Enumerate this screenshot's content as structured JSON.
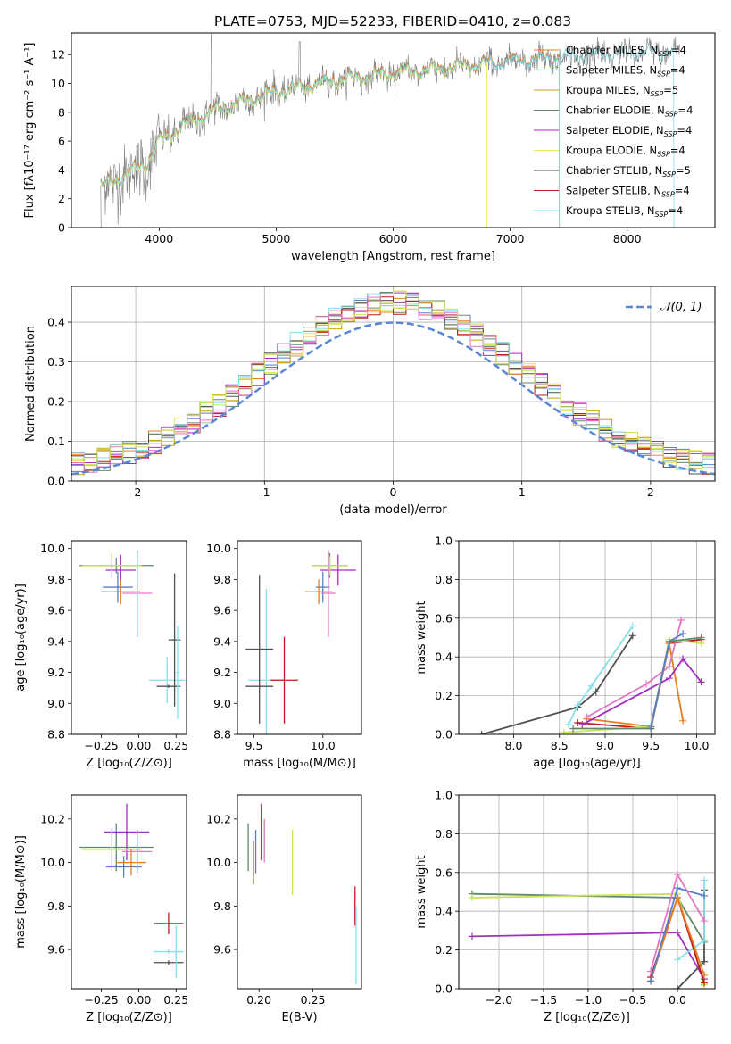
{
  "figure": {
    "title": "PLATE=0753, MJD=52233, FIBERID=0410, z=0.083"
  },
  "colors": {
    "chab_miles": "#e67e22",
    "salp_miles": "#5a7ec6",
    "krou_miles": "#c8a200",
    "chab_elodie": "#5f8a6c",
    "salp_elodie": "#a12fbf",
    "krou_elodie": "#e9e65a",
    "chab_stelib": "#505050",
    "salp_stelib": "#c01c1c",
    "krou_stelib": "#87e0e8",
    "pink": "#e377c2",
    "lime": "#c9e35a",
    "gray_spec": "#7f7f7f",
    "gauss": "#5a86d6"
  },
  "chart_data": [
    {
      "id": "spectrum",
      "type": "line",
      "xlabel": "wavelength [Angstrom, rest frame]",
      "ylabel": "Flux [fλ10⁻¹⁷ erg cm⁻² s⁻¹ A⁻¹]",
      "xlim": [
        3250,
        8750
      ],
      "ylim": [
        0,
        13.5
      ],
      "xticks": [
        4000,
        5000,
        6000,
        7000,
        8000
      ],
      "yticks": [
        0,
        2,
        4,
        6,
        8,
        10,
        12
      ],
      "legend_position": "top-right",
      "legend": [
        {
          "label": "Chabrier MILES, N",
          "sub": "SSP",
          "n": "=4",
          "color_key": "chab_miles"
        },
        {
          "label": "Salpeter MILES, N",
          "sub": "SSP",
          "n": "=4",
          "color_key": "salp_miles"
        },
        {
          "label": "Kroupa MILES, N",
          "sub": "SSP",
          "n": "=5",
          "color_key": "krou_miles"
        },
        {
          "label": "Chabrier ELODIE, N",
          "sub": "SSP",
          "n": "=4",
          "color_key": "chab_elodie"
        },
        {
          "label": "Salpeter ELODIE, N",
          "sub": "SSP",
          "n": "=4",
          "color_key": "salp_elodie"
        },
        {
          "label": "Kroupa ELODIE, N",
          "sub": "SSP",
          "n": "=4",
          "color_key": "krou_elodie"
        },
        {
          "label": "Chabrier STELIB, N",
          "sub": "SSP",
          "n": "=5",
          "color_key": "chab_stelib"
        },
        {
          "label": "Salpeter STELIB, N",
          "sub": "SSP",
          "n": "=4",
          "color_key": "salp_stelib"
        },
        {
          "label": "Kroupa STELIB, N",
          "sub": "SSP",
          "n": "=4",
          "color_key": "krou_stelib"
        }
      ],
      "continuum": {
        "x": [
          3500,
          3700,
          3900,
          4000,
          4200,
          4500,
          5000,
          5500,
          6000,
          6500,
          7000,
          7400,
          8000,
          8400
        ],
        "y": [
          2.8,
          3.6,
          4.5,
          6.0,
          7.0,
          8.2,
          9.4,
          10.2,
          10.7,
          11.1,
          11.5,
          11.8,
          12.1,
          12.2
        ]
      },
      "models_end": {
        "miles": 7420,
        "elodie": 6800,
        "stelib": 8400
      }
    },
    {
      "id": "residual_hist",
      "type": "bar",
      "xlabel": "(data-model)/error",
      "ylabel": "Normed distribution",
      "xlim": [
        -2.5,
        2.5
      ],
      "ylim": [
        0,
        0.49
      ],
      "xticks": [
        -2,
        -1,
        0,
        1,
        2
      ],
      "yticks": [
        0.0,
        0.1,
        0.2,
        0.3,
        0.4
      ],
      "grid": true,
      "legend_position": "top-right",
      "legend": [
        {
          "label": "𝒩(0, 1)",
          "color_key": "gauss",
          "style": "dashed"
        }
      ],
      "bin_width": 0.1,
      "bin_start": -2.5,
      "gaussian": {
        "mean": 0,
        "sigma": 1
      }
    },
    {
      "id": "z_age",
      "type": "scatter",
      "xlabel": "Z [log₁₀(Z/Z⊙)]",
      "ylabel": "age  [log₁₀(age/yr)]",
      "xlim": [
        -0.45,
        0.32
      ],
      "ylim": [
        8.8,
        10.05
      ],
      "xticks": [
        -0.25,
        0.0,
        0.25
      ],
      "xticklabels": [
        "−0.25",
        "0.00",
        "0.25"
      ],
      "yticks": [
        8.8,
        9.0,
        9.2,
        9.4,
        9.6,
        9.8,
        10.0
      ],
      "points": [
        {
          "x": -0.15,
          "xerr": 0.25,
          "y": 9.89,
          "yerr": 0.05,
          "c": "chab_elodie"
        },
        {
          "x": -0.12,
          "xerr": 0.1,
          "y": 9.86,
          "yerr": 0.1,
          "c": "salp_elodie"
        },
        {
          "x": -0.18,
          "xerr": 0.2,
          "y": 9.89,
          "yerr": 0.08,
          "c": "lime"
        },
        {
          "x": -0.14,
          "xerr": 0.1,
          "y": 9.75,
          "yerr": 0.1,
          "c": "salp_miles"
        },
        {
          "x": -0.12,
          "xerr": 0.13,
          "y": 9.72,
          "yerr": 0.08,
          "c": "chab_miles"
        },
        {
          "x": -0.01,
          "xerr": 0.1,
          "y": 9.71,
          "yerr": 0.28,
          "c": "pink"
        },
        {
          "x": 0.19,
          "xerr": 0.12,
          "y": 9.15,
          "yerr": 0.15,
          "c": "krou_stelib"
        },
        {
          "x": 0.24,
          "xerr": 0.04,
          "y": 9.41,
          "yerr": 0.43,
          "c": "chab_stelib"
        },
        {
          "x": 0.2,
          "xerr": 0.08,
          "y": 9.11,
          "yerr": 0.01,
          "c": "chab_stelib"
        },
        {
          "x": 0.26,
          "xerr": 0.01,
          "y": 9.2,
          "yerr": 0.3,
          "c": "krou_stelib"
        }
      ]
    },
    {
      "id": "mass_age",
      "type": "scatter",
      "xlabel": "mass [log₁₀(M/M⊙)]",
      "ylabel": "",
      "xlim": [
        9.38,
        10.28
      ],
      "ylim": [
        8.8,
        10.05
      ],
      "xticks": [
        9.5,
        10.0
      ],
      "yticks": [
        8.8,
        9.0,
        9.2,
        9.4,
        9.6,
        9.8,
        10.0
      ],
      "points": [
        {
          "x": 10.05,
          "xerr": 0.13,
          "y": 9.89,
          "yerr": 0.08,
          "c": "chab_elodie"
        },
        {
          "x": 10.11,
          "xerr": 0.13,
          "y": 9.86,
          "yerr": 0.1,
          "c": "salp_elodie"
        },
        {
          "x": 10.05,
          "xerr": 0.13,
          "y": 9.89,
          "yerr": 0.06,
          "c": "lime"
        },
        {
          "x": 10.0,
          "xerr": 0.05,
          "y": 9.75,
          "yerr": 0.1,
          "c": "salp_miles"
        },
        {
          "x": 9.97,
          "xerr": 0.1,
          "y": 9.72,
          "yerr": 0.08,
          "c": "chab_miles"
        },
        {
          "x": 10.04,
          "xerr": 0.05,
          "y": 9.71,
          "yerr": 0.28,
          "c": "pink"
        },
        {
          "x": 9.59,
          "xerr": 0.13,
          "y": 9.15,
          "yerr": 0.59,
          "c": "krou_stelib"
        },
        {
          "x": 9.54,
          "xerr": 0.1,
          "y": 9.35,
          "yerr": 0.48,
          "c": "chab_stelib"
        },
        {
          "x": 9.72,
          "xerr": 0.1,
          "y": 9.15,
          "yerr": 0.28,
          "c": "salp_stelib"
        },
        {
          "x": 9.54,
          "xerr": 0.1,
          "y": 9.11,
          "yerr": 0.01,
          "c": "chab_stelib"
        }
      ]
    },
    {
      "id": "age_weight",
      "type": "line",
      "xlabel": "age  [log₁₀(age/yr)]",
      "ylabel": "mass weight",
      "xlim": [
        7.4,
        10.2
      ],
      "ylim": [
        0,
        1.0
      ],
      "xticks": [
        8.0,
        8.5,
        9.0,
        9.5,
        10.0
      ],
      "yticks": [
        0.0,
        0.2,
        0.4,
        0.6,
        0.8,
        1.0
      ],
      "grid": true,
      "series": [
        {
          "c": "chab_stelib",
          "x": [
            7.65,
            8.7,
            8.9,
            9.3
          ],
          "y": [
            0.0,
            0.14,
            0.22,
            0.51
          ]
        },
        {
          "c": "krou_stelib",
          "x": [
            8.6,
            8.7,
            8.85,
            9.3
          ],
          "y": [
            0.05,
            0.15,
            0.25,
            0.56
          ]
        },
        {
          "c": "salp_stelib",
          "x": [
            8.7,
            9.5,
            9.7,
            10.05
          ],
          "y": [
            0.06,
            0.03,
            0.47,
            0.49
          ]
        },
        {
          "c": "chab_miles",
          "x": [
            8.8,
            9.5,
            9.7,
            9.85
          ],
          "y": [
            0.08,
            0.04,
            0.47,
            0.07
          ]
        },
        {
          "c": "pink",
          "x": [
            8.8,
            9.45,
            9.7,
            9.83
          ],
          "y": [
            0.09,
            0.26,
            0.35,
            0.59
          ]
        },
        {
          "c": "salp_elodie",
          "x": [
            8.75,
            9.7,
            9.85,
            10.05
          ],
          "y": [
            0.05,
            0.29,
            0.39,
            0.27
          ]
        },
        {
          "c": "lime",
          "x": [
            8.55,
            9.5,
            9.7,
            10.05
          ],
          "y": [
            0.01,
            0.04,
            0.49,
            0.47
          ]
        },
        {
          "c": "chab_elodie",
          "x": [
            8.65,
            9.5,
            9.7,
            10.05
          ],
          "y": [
            0.03,
            0.03,
            0.48,
            0.5
          ]
        },
        {
          "c": "salp_miles",
          "x": [
            9.5,
            9.7,
            9.85
          ],
          "y": [
            0.04,
            0.48,
            0.52
          ]
        }
      ]
    },
    {
      "id": "z_mass",
      "type": "scatter",
      "xlabel": "Z [log₁₀(Z/Z⊙)]",
      "ylabel": "mass [log₁₀(M/M⊙)]",
      "xlim": [
        -0.45,
        0.32
      ],
      "ylim": [
        9.42,
        10.31
      ],
      "xticks": [
        -0.25,
        0.0,
        0.25
      ],
      "xticklabels": [
        "−0.25",
        "0.00",
        "0.25"
      ],
      "yticks": [
        9.6,
        9.8,
        10.0,
        10.2
      ],
      "points": [
        {
          "x": -0.15,
          "xerr": 0.25,
          "y": 10.07,
          "yerr": 0.11,
          "c": "chab_elodie"
        },
        {
          "x": -0.08,
          "xerr": 0.15,
          "y": 10.14,
          "yerr": 0.13,
          "c": "salp_elodie"
        },
        {
          "x": -0.18,
          "xerr": 0.2,
          "y": 10.06,
          "yerr": 0.1,
          "c": "lime"
        },
        {
          "x": -0.1,
          "xerr": 0.12,
          "y": 9.98,
          "yerr": 0.05,
          "c": "salp_miles"
        },
        {
          "x": -0.05,
          "xerr": 0.1,
          "y": 10.0,
          "yerr": 0.06,
          "c": "chab_miles"
        },
        {
          "x": -0.01,
          "xerr": 0.1,
          "y": 10.05,
          "yerr": 0.1,
          "c": "pink"
        },
        {
          "x": 0.2,
          "xerr": 0.1,
          "y": 9.72,
          "yerr": 0.05,
          "c": "salp_stelib"
        },
        {
          "x": 0.2,
          "xerr": 0.1,
          "y": 9.54,
          "yerr": 0.01,
          "c": "chab_stelib"
        },
        {
          "x": 0.2,
          "xerr": 0.1,
          "y": 9.59,
          "yerr": 0.01,
          "c": "krou_stelib"
        },
        {
          "x": 0.25,
          "xerr": 0.01,
          "y": 9.59,
          "yerr": 0.12,
          "c": "krou_stelib"
        }
      ]
    },
    {
      "id": "ebv_mass",
      "type": "scatter",
      "xlabel": "E(B-V)",
      "ylabel": "",
      "xlim": [
        0.18,
        0.295
      ],
      "ylim": [
        9.42,
        10.31
      ],
      "xticks": [
        0.2,
        0.25
      ],
      "xticklabels": [
        "0.20",
        "0.25"
      ],
      "yticks": [
        9.6,
        9.8,
        10.0,
        10.2
      ],
      "points": [
        {
          "x": 0.19,
          "xerr": 0.0,
          "y": 10.07,
          "yerr": 0.11,
          "c": "chab_elodie"
        },
        {
          "x": 0.195,
          "xerr": 0.0,
          "y": 10.0,
          "yerr": 0.1,
          "c": "chab_miles"
        },
        {
          "x": 0.197,
          "xerr": 0.0,
          "y": 10.05,
          "yerr": 0.1,
          "c": "salp_miles"
        },
        {
          "x": 0.202,
          "xerr": 0.0,
          "y": 10.14,
          "yerr": 0.13,
          "c": "salp_elodie"
        },
        {
          "x": 0.205,
          "xerr": 0.0,
          "y": 10.1,
          "yerr": 0.1,
          "c": "pink"
        },
        {
          "x": 0.231,
          "xerr": 0.0,
          "y": 10.0,
          "yerr": 0.15,
          "c": "lime"
        },
        {
          "x": 0.289,
          "xerr": 0.0,
          "y": 9.8,
          "yerr": 0.09,
          "c": "salp_stelib"
        },
        {
          "x": 0.29,
          "xerr": 0.0,
          "y": 9.62,
          "yerr": 0.18,
          "c": "krou_stelib"
        }
      ]
    },
    {
      "id": "z_weight",
      "type": "line",
      "xlabel": "Z [log₁₀(Z/Z⊙)]",
      "ylabel": "mass weight",
      "xlim": [
        -2.45,
        0.42
      ],
      "ylim": [
        0,
        1.0
      ],
      "xticks": [
        -2.0,
        -1.5,
        -1.0,
        -0.5,
        0.0
      ],
      "xticklabels": [
        "−2.0",
        "−1.5",
        "−1.0",
        "−0.5",
        "0.0"
      ],
      "yticks": [
        0.0,
        0.2,
        0.4,
        0.6,
        0.8,
        1.0
      ],
      "grid": true,
      "series": [
        {
          "c": "chab_elodie",
          "x": [
            -2.3,
            0.0,
            0.3
          ],
          "y": [
            0.49,
            0.47,
            0.24
          ]
        },
        {
          "c": "lime",
          "x": [
            -2.3,
            0.0,
            0.3
          ],
          "y": [
            0.47,
            0.49,
            0.02
          ]
        },
        {
          "c": "salp_elodie",
          "x": [
            -2.3,
            0.0,
            0.3
          ],
          "y": [
            0.27,
            0.29,
            0.05
          ]
        },
        {
          "c": "chab_stelib",
          "x": [
            0.0,
            0.3,
            0.3
          ],
          "y": [
            0.0,
            0.14,
            0.51
          ]
        },
        {
          "c": "krou_stelib",
          "x": [
            0.0,
            0.3,
            0.3
          ],
          "y": [
            0.15,
            0.25,
            0.56
          ]
        },
        {
          "c": "salp_stelib",
          "x": [
            -0.3,
            0.0,
            0.3
          ],
          "y": [
            0.06,
            0.47,
            0.03
          ]
        },
        {
          "c": "chab_miles",
          "x": [
            -0.3,
            0.0,
            0.3
          ],
          "y": [
            0.04,
            0.47,
            0.07
          ]
        },
        {
          "c": "pink",
          "x": [
            -0.3,
            0.0,
            0.3
          ],
          "y": [
            0.09,
            0.59,
            0.35
          ]
        },
        {
          "c": "salp_miles",
          "x": [
            -0.3,
            0.0,
            0.3
          ],
          "y": [
            0.04,
            0.52,
            0.48
          ]
        }
      ]
    }
  ]
}
